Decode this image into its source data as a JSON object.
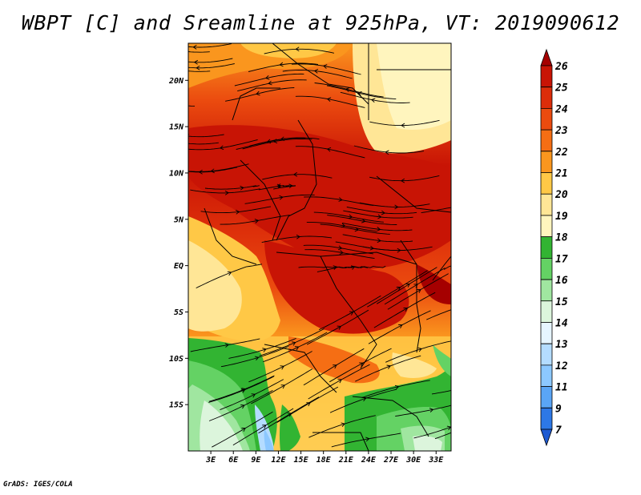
{
  "title": "WBPT [C] and Sreamline at 925hPa, VT: 2019090612",
  "credit": "GrADS: IGES/COLA",
  "map": {
    "lon_range": [
      0,
      35
    ],
    "lat_range": [
      -20,
      24
    ],
    "lat_ticks": [
      {
        "value": 20,
        "label": "20N"
      },
      {
        "value": 15,
        "label": "15N"
      },
      {
        "value": 10,
        "label": "10N"
      },
      {
        "value": 5,
        "label": "5N"
      },
      {
        "value": 0,
        "label": "EQ"
      },
      {
        "value": -5,
        "label": "5S"
      },
      {
        "value": -10,
        "label": "10S"
      },
      {
        "value": -15,
        "label": "15S"
      }
    ],
    "lon_ticks": [
      {
        "value": 3,
        "label": "3E"
      },
      {
        "value": 6,
        "label": "6E"
      },
      {
        "value": 9,
        "label": "9E"
      },
      {
        "value": 12,
        "label": "12E"
      },
      {
        "value": 15,
        "label": "15E"
      },
      {
        "value": 18,
        "label": "18E"
      },
      {
        "value": 21,
        "label": "21E"
      },
      {
        "value": 24,
        "label": "24E"
      },
      {
        "value": 27,
        "label": "27E"
      },
      {
        "value": 30,
        "label": "30E"
      },
      {
        "value": 33,
        "label": "33E"
      }
    ]
  },
  "colorbar": {
    "labels": [
      "26",
      "25",
      "24",
      "23",
      "22",
      "21",
      "20",
      "19",
      "18",
      "17",
      "16",
      "15",
      "14",
      "13",
      "12",
      "11",
      "9",
      "7"
    ],
    "colors": [
      "#a50000",
      "#c81405",
      "#dc2d0a",
      "#eb4b0f",
      "#f56e14",
      "#fa961e",
      "#ffc846",
      "#ffe696",
      "#fff5be",
      "#32b432",
      "#64d264",
      "#a0e6a0",
      "#dcf5dc",
      "#e6f5ff",
      "#b4dcff",
      "#8cc8ff",
      "#5aa5f5",
      "#2d78e6",
      "#1e5ad2"
    ]
  }
}
